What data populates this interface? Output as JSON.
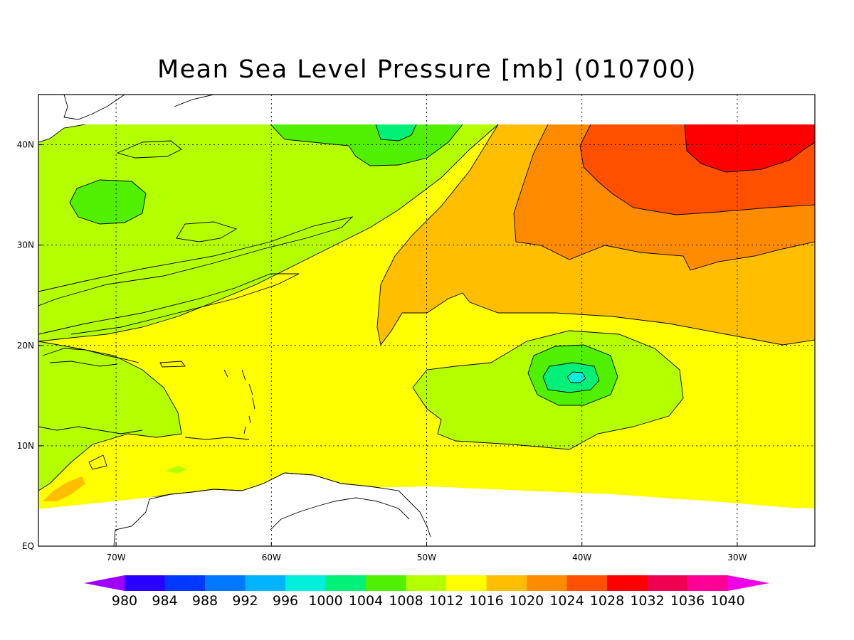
{
  "title": "Mean Sea Level Pressure [mb] (010700)",
  "map": {
    "lon_range": [
      -75,
      -25
    ],
    "lat_range": [
      0,
      45
    ],
    "lon_ticks": [
      {
        "value": -70,
        "label": "70W"
      },
      {
        "value": -60,
        "label": "60W"
      },
      {
        "value": -50,
        "label": "50W"
      },
      {
        "value": -40,
        "label": "40W"
      },
      {
        "value": -30,
        "label": "30W"
      }
    ],
    "lat_ticks": [
      {
        "value": 0,
        "label": "EQ"
      },
      {
        "value": 10,
        "label": "10N"
      },
      {
        "value": 20,
        "label": "20N"
      },
      {
        "value": 30,
        "label": "30N"
      },
      {
        "value": 40,
        "label": "40N"
      }
    ],
    "grid": "dotted"
  },
  "colorbar": {
    "levels": [
      "980",
      "984",
      "988",
      "992",
      "996",
      "1000",
      "1004",
      "1008",
      "1012",
      "1016",
      "1020",
      "1024",
      "1028",
      "1032",
      "1036",
      "1040"
    ],
    "colors": [
      "#a000ff",
      "#2800ff",
      "#0038ff",
      "#0078ff",
      "#00b4ff",
      "#00f0dc",
      "#00f078",
      "#50f000",
      "#b4ff00",
      "#ffff00",
      "#ffbe00",
      "#ff8c00",
      "#ff5000",
      "#ff0000",
      "#f00050",
      "#ff0096",
      "#f000e6"
    ]
  },
  "fill_colors": {
    "band_1004_1008": "#50f000",
    "band_1008_1012": "#b4ff00",
    "band_1012_1016": "#ffff00",
    "band_1016_1020": "#ffbe00",
    "band_1020_1024": "#ff8c00",
    "band_1024_1028": "#ff5000",
    "band_1028_1032": "#ff0000",
    "band_1000_1004": "#00f078",
    "land": "#ffffff"
  }
}
